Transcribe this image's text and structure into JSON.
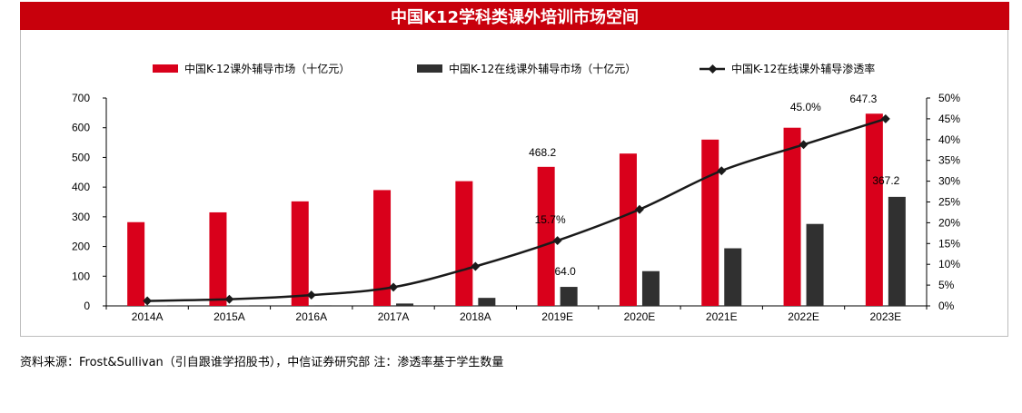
{
  "title": "中国K12学科类课外培训市场空间",
  "source": "资料来源：Frost&Sullivan（引自跟谁学招股书），中信证券研究部 注：渗透率基于学生数量",
  "colors": {
    "title_bg": "#c8000c",
    "bar_total": "#d9001b",
    "bar_online": "#303030",
    "line": "#1a1a1a"
  },
  "chart_data": {
    "type": "bar",
    "categories": [
      "2014A",
      "2015A",
      "2016A",
      "2017A",
      "2018A",
      "2019E",
      "2020E",
      "2021E",
      "2022E",
      "2023E"
    ],
    "series": [
      {
        "name": "中国K-12课外辅导市场（十亿元）",
        "type": "bar",
        "axis": "left",
        "values": [
          282,
          315,
          352,
          390,
          420,
          468.2,
          513,
          560,
          600,
          647.3
        ]
      },
      {
        "name": "中国K-12在线课外辅导市场（十亿元）",
        "type": "bar",
        "axis": "left",
        "values": [
          1,
          1,
          2,
          8,
          27,
          64.0,
          117,
          194,
          276,
          367.2
        ]
      },
      {
        "name": "中国K-12在线课外辅导渗透率",
        "type": "line",
        "axis": "right",
        "values": [
          1.2,
          1.6,
          2.6,
          4.5,
          9.5,
          15.7,
          23.2,
          32.5,
          38.8,
          45.0
        ]
      }
    ],
    "data_labels": [
      {
        "series": 0,
        "index": 5,
        "text": "468.2"
      },
      {
        "series": 0,
        "index": 9,
        "text": "647.3"
      },
      {
        "series": 1,
        "index": 5,
        "text": "64.0"
      },
      {
        "series": 1,
        "index": 9,
        "text": "367.2"
      },
      {
        "series": 2,
        "index": 5,
        "text": "15.7%"
      },
      {
        "series": 2,
        "index": 9,
        "text": "45.0%"
      }
    ],
    "y_left": {
      "min": 0,
      "max": 700,
      "ticks": [
        "0",
        "100",
        "200",
        "300",
        "400",
        "500",
        "600",
        "700"
      ]
    },
    "y_right": {
      "min": 0,
      "max": 50,
      "ticks": [
        "0%",
        "5%",
        "10%",
        "15%",
        "20%",
        "25%",
        "30%",
        "35%",
        "40%",
        "45%",
        "50%"
      ]
    },
    "grid": false,
    "legend": "top"
  }
}
